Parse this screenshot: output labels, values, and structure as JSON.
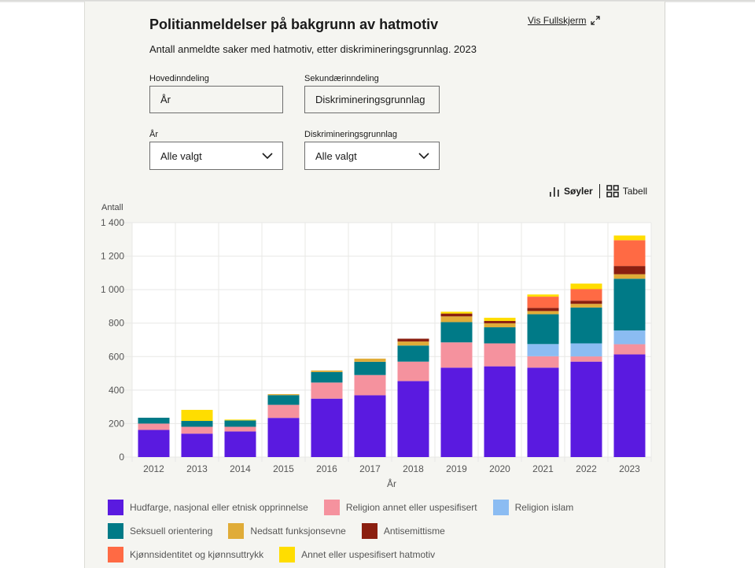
{
  "header": {
    "title": "Politianmeldelser på bakgrunn av hatmotiv",
    "subtitle": "Antall anmeldte saker med hatmotiv, etter diskrimineringsgrunnlag. 2023",
    "fullscreen_label": "Vis Fullskjerm",
    "fullscreen_icon": "expand-arrows-icon"
  },
  "controls": {
    "primary": {
      "label": "Hovedinndeling",
      "value": "År"
    },
    "secondary": {
      "label": "Sekundærinndeling",
      "value": "Diskrimineringsgrunnlag"
    },
    "year_filter": {
      "label": "År",
      "value": "Alle valgt"
    },
    "basis_filter": {
      "label": "Diskrimineringsgrunnlag",
      "value": "Alle valgt"
    }
  },
  "view_toggle": {
    "bars_label": "Søyler",
    "table_label": "Tabell",
    "active": "bars"
  },
  "chart_data": {
    "type": "bar",
    "stacked": true,
    "title": "Politianmeldelser på bakgrunn av hatmotiv",
    "xlabel": "År",
    "ylabel": "Antall",
    "ylim": [
      0,
      1400
    ],
    "yticks": [
      0,
      200,
      400,
      600,
      800,
      1000,
      1200,
      1400
    ],
    "ytick_labels": [
      "0",
      "200",
      "400",
      "600",
      "800",
      "1 000",
      "1 200",
      "1 400"
    ],
    "grid": true,
    "legend_position": "bottom",
    "categories": [
      "2012",
      "2013",
      "2014",
      "2015",
      "2016",
      "2017",
      "2018",
      "2019",
      "2020",
      "2021",
      "2022",
      "2023"
    ],
    "series": [
      {
        "name": "Hudfarge, nasjonal eller etnisk opprinnelse",
        "color": "#5a1ae0",
        "values": [
          162,
          140,
          153,
          234,
          349,
          369,
          454,
          534,
          542,
          534,
          570,
          613
        ]
      },
      {
        "name": "Religion annet eller uspesifisert",
        "color": "#f5929e",
        "values": [
          38,
          41,
          28,
          78,
          96,
          121,
          116,
          151,
          137,
          68,
          31,
          61
        ]
      },
      {
        "name": "Religion islam",
        "color": "#8bbcf2",
        "values": [
          0,
          0,
          0,
          0,
          0,
          0,
          0,
          0,
          0,
          73,
          78,
          82
        ]
      },
      {
        "name": "Seksuell orientering",
        "color": "#007a87",
        "values": [
          35,
          35,
          38,
          58,
          63,
          79,
          96,
          121,
          96,
          178,
          214,
          309
        ]
      },
      {
        "name": "Nedsatt funksjonsevne",
        "color": "#e0ac38",
        "values": [
          0,
          0,
          0,
          6,
          9,
          19,
          24,
          34,
          24,
          19,
          22,
          27
        ]
      },
      {
        "name": "Antisemittisme",
        "color": "#8b1f10",
        "values": [
          0,
          0,
          0,
          0,
          0,
          0,
          17,
          17,
          14,
          19,
          19,
          49
        ]
      },
      {
        "name": "Kjønnsidentitet og kjønnsuttrykk",
        "color": "#ff6a44",
        "values": [
          0,
          0,
          0,
          0,
          0,
          0,
          0,
          0,
          0,
          67,
          69,
          154
        ]
      },
      {
        "name": "Annet eller uspesifisert hatmotiv",
        "color": "#ffdd00",
        "values": [
          0,
          66,
          5,
          0,
          0,
          0,
          0,
          11,
          19,
          13,
          33,
          28
        ]
      }
    ]
  }
}
